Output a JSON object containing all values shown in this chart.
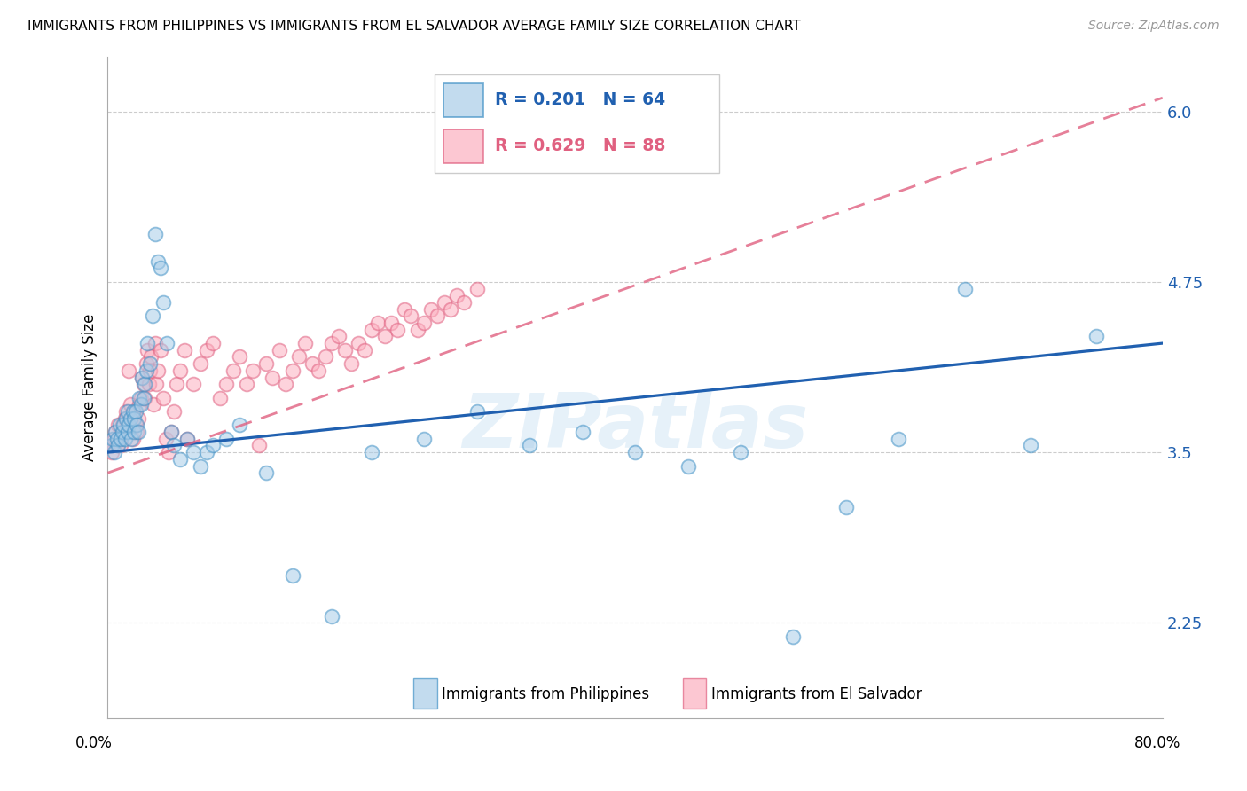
{
  "title": "IMMIGRANTS FROM PHILIPPINES VS IMMIGRANTS FROM EL SALVADOR AVERAGE FAMILY SIZE CORRELATION CHART",
  "source": "Source: ZipAtlas.com",
  "ylabel": "Average Family Size",
  "yticks": [
    2.25,
    3.5,
    4.75,
    6.0
  ],
  "xmin": 0.0,
  "xmax": 80.0,
  "ymin": 1.55,
  "ymax": 6.4,
  "watermark": "ZIPatlas",
  "philippines_color": "#a8cce8",
  "philippines_edge_color": "#4292c6",
  "el_salvador_color": "#fcb0c0",
  "el_salvador_edge_color": "#e06080",
  "philippines_line_color": "#2060b0",
  "el_salvador_line_color": "#cc5070",
  "philippines_R": 0.201,
  "philippines_N": 64,
  "el_salvador_R": 0.629,
  "el_salvador_N": 88,
  "philippines_x": [
    0.3,
    0.4,
    0.5,
    0.6,
    0.7,
    0.8,
    0.9,
    1.0,
    1.1,
    1.2,
    1.3,
    1.4,
    1.5,
    1.5,
    1.6,
    1.7,
    1.8,
    1.9,
    2.0,
    2.0,
    2.1,
    2.2,
    2.3,
    2.4,
    2.5,
    2.6,
    2.7,
    2.8,
    2.9,
    3.0,
    3.2,
    3.4,
    3.6,
    3.8,
    4.0,
    4.2,
    4.5,
    4.8,
    5.0,
    5.5,
    6.0,
    6.5,
    7.0,
    7.5,
    8.0,
    9.0,
    10.0,
    12.0,
    14.0,
    17.0,
    20.0,
    24.0,
    28.0,
    32.0,
    36.0,
    40.0,
    44.0,
    48.0,
    52.0,
    56.0,
    60.0,
    65.0,
    70.0,
    75.0
  ],
  "philippines_y": [
    3.55,
    3.6,
    3.5,
    3.65,
    3.6,
    3.55,
    3.7,
    3.6,
    3.65,
    3.7,
    3.6,
    3.75,
    3.65,
    3.8,
    3.7,
    3.75,
    3.6,
    3.8,
    3.65,
    3.75,
    3.8,
    3.7,
    3.65,
    3.9,
    3.85,
    4.05,
    3.9,
    4.0,
    4.1,
    4.3,
    4.15,
    4.5,
    5.1,
    4.9,
    4.85,
    4.6,
    4.3,
    3.65,
    3.55,
    3.45,
    3.6,
    3.5,
    3.4,
    3.5,
    3.55,
    3.6,
    3.7,
    3.35,
    2.6,
    2.3,
    3.5,
    3.6,
    3.8,
    3.55,
    3.65,
    3.5,
    3.4,
    3.5,
    2.15,
    3.1,
    3.6,
    4.7,
    3.55,
    4.35
  ],
  "el_salvador_x": [
    0.3,
    0.4,
    0.5,
    0.6,
    0.7,
    0.8,
    0.9,
    1.0,
    1.1,
    1.2,
    1.3,
    1.4,
    1.5,
    1.6,
    1.7,
    1.8,
    1.9,
    2.0,
    2.1,
    2.2,
    2.3,
    2.4,
    2.5,
    2.6,
    2.7,
    2.8,
    2.9,
    3.0,
    3.1,
    3.2,
    3.3,
    3.5,
    3.6,
    3.7,
    3.8,
    4.0,
    4.2,
    4.4,
    4.6,
    4.8,
    5.0,
    5.2,
    5.5,
    5.8,
    6.0,
    6.5,
    7.0,
    7.5,
    8.0,
    8.5,
    9.0,
    9.5,
    10.0,
    10.5,
    11.0,
    11.5,
    12.0,
    12.5,
    13.0,
    13.5,
    14.0,
    14.5,
    15.0,
    15.5,
    16.0,
    16.5,
    17.0,
    17.5,
    18.0,
    18.5,
    19.0,
    19.5,
    20.0,
    20.5,
    21.0,
    21.5,
    22.0,
    22.5,
    23.0,
    23.5,
    24.0,
    24.5,
    25.0,
    25.5,
    26.0,
    26.5,
    27.0,
    28.0
  ],
  "el_salvador_y": [
    3.5,
    3.55,
    3.6,
    3.65,
    3.55,
    3.7,
    3.6,
    3.55,
    3.7,
    3.65,
    3.75,
    3.8,
    3.7,
    4.1,
    3.85,
    3.75,
    3.6,
    3.8,
    3.7,
    3.65,
    3.75,
    3.85,
    3.9,
    4.05,
    4.0,
    3.9,
    4.15,
    4.25,
    4.0,
    4.1,
    4.2,
    3.85,
    4.3,
    4.0,
    4.1,
    4.25,
    3.9,
    3.6,
    3.5,
    3.65,
    3.8,
    4.0,
    4.1,
    4.25,
    3.6,
    4.0,
    4.15,
    4.25,
    4.3,
    3.9,
    4.0,
    4.1,
    4.2,
    4.0,
    4.1,
    3.55,
    4.15,
    4.05,
    4.25,
    4.0,
    4.1,
    4.2,
    4.3,
    4.15,
    4.1,
    4.2,
    4.3,
    4.35,
    4.25,
    4.15,
    4.3,
    4.25,
    4.4,
    4.45,
    4.35,
    4.45,
    4.4,
    4.55,
    4.5,
    4.4,
    4.45,
    4.55,
    4.5,
    4.6,
    4.55,
    4.65,
    4.6,
    4.7
  ],
  "ph_trend_x0": 0.0,
  "ph_trend_x1": 80.0,
  "ph_trend_y0": 3.5,
  "ph_trend_y1": 4.3,
  "es_trend_x0": 0.0,
  "es_trend_x1": 80.0,
  "es_trend_y0": 3.35,
  "es_trend_y1": 6.1
}
